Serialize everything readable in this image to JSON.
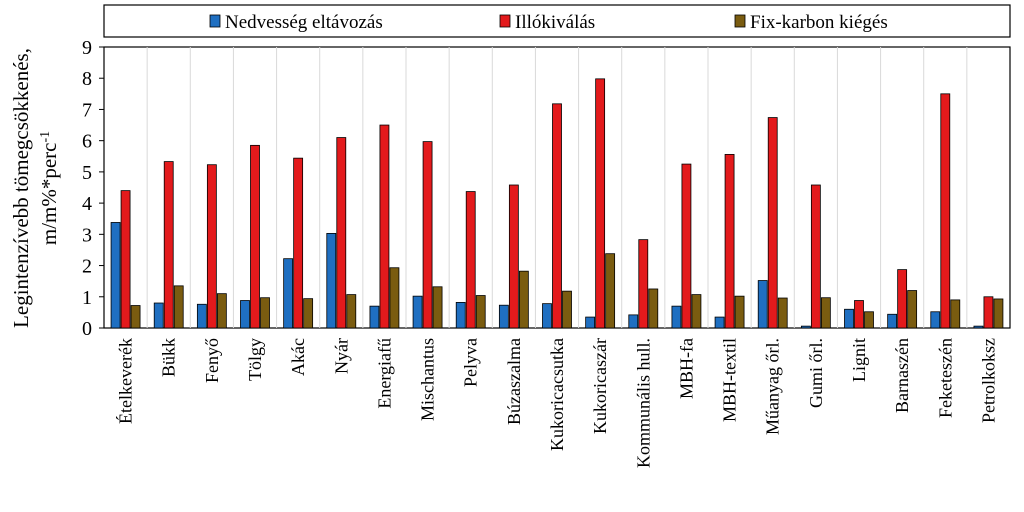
{
  "chart_data": {
    "type": "bar",
    "ylabel": "Legintenzívebb tömegcsökkenés,",
    "ylabel_unit_main": "m/m%*perc",
    "ylabel_unit_sup": "-1",
    "ylim": [
      0,
      9
    ],
    "yticks": [
      "0",
      "1",
      "2",
      "3",
      "4",
      "5",
      "6",
      "7",
      "8",
      "9"
    ],
    "grid": "vertical lines between categories",
    "legend_position": "top",
    "categories": [
      "Ételkeverék",
      "Bükk",
      "Fenyő",
      "Tölgy",
      "Akác",
      "Nyár",
      "Energiafű",
      "Mischantus",
      "Pelyva",
      "Búzaszalma",
      "Kukoricacsutka",
      "Kukoricaszár",
      "Kommunális hull.",
      "MBH-fa",
      "MBH-textil",
      "Műanyag őrl.",
      "Gumi őrl.",
      "Lignit",
      "Barnaszén",
      "Feketeszén",
      "Petrolkoksz"
    ],
    "series": [
      {
        "name": "Nedvesség eltávozás",
        "color": "#1f6fc1",
        "values": [
          3.38,
          0.8,
          0.76,
          0.88,
          2.22,
          3.03,
          0.7,
          1.02,
          0.82,
          0.73,
          0.78,
          0.35,
          0.42,
          0.7,
          0.35,
          1.52,
          0.06,
          0.6,
          0.44,
          0.52,
          0.06
        ]
      },
      {
        "name": "Illókiválás",
        "color": "#e31a1c",
        "values": [
          4.4,
          5.33,
          5.23,
          5.85,
          5.44,
          6.1,
          6.5,
          5.97,
          4.37,
          4.58,
          7.18,
          7.98,
          2.83,
          5.25,
          5.56,
          6.74,
          4.58,
          0.88,
          1.87,
          7.5,
          1.0
        ]
      },
      {
        "name": "Fix-karbon kiégés",
        "color": "#7a5c10",
        "values": [
          0.72,
          1.35,
          1.1,
          0.97,
          0.94,
          1.07,
          1.93,
          1.32,
          1.04,
          1.82,
          1.18,
          2.38,
          1.25,
          1.07,
          1.02,
          0.96,
          0.97,
          0.52,
          1.2,
          0.9,
          0.93
        ]
      }
    ]
  }
}
